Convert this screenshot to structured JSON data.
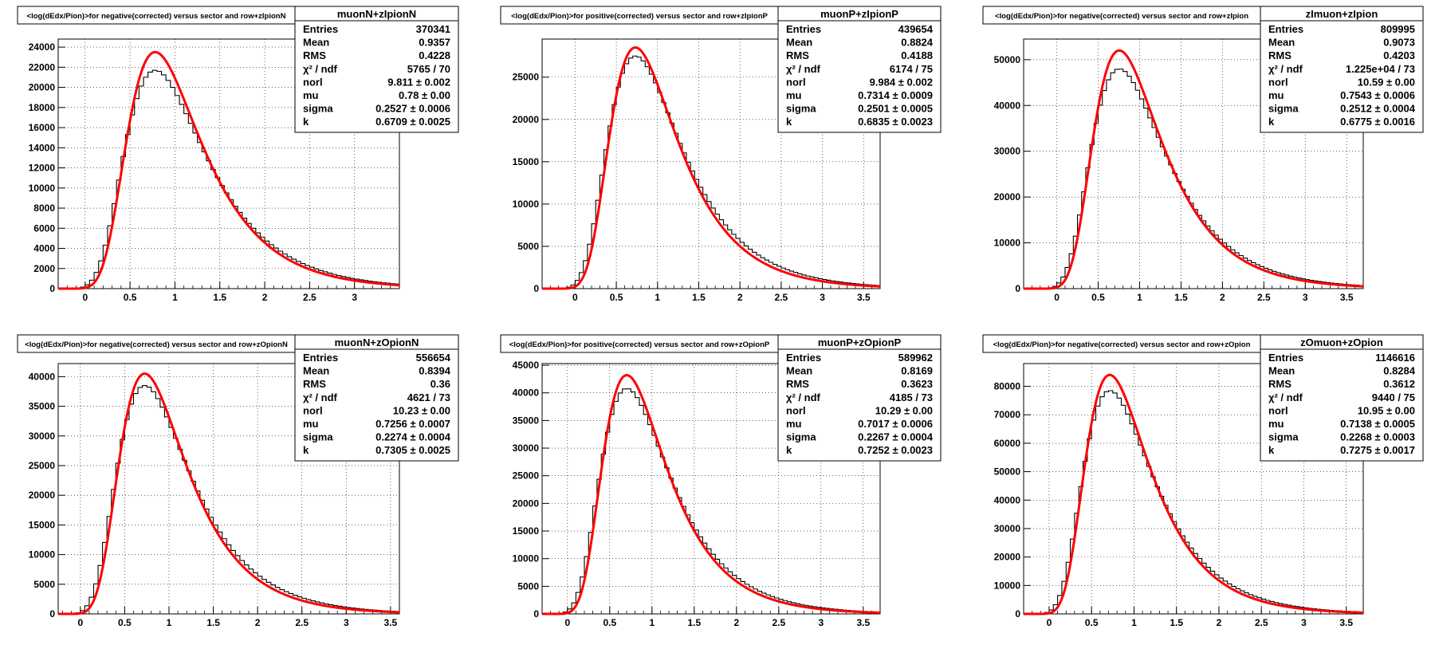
{
  "chart_data": [
    {
      "type": "histogram",
      "title": "<log(dEdx/Pion)>for negative(corrected) versus sector and row+zIpionN",
      "stats_name": "muonN+zIpionN",
      "stats": [
        {
          "label": "Entries",
          "value": "370341"
        },
        {
          "label": "Mean",
          "value": "0.9357"
        },
        {
          "label": "RMS",
          "value": "0.4228"
        },
        {
          "label": "χ² / ndf",
          "value": "5765 / 70"
        },
        {
          "label": "norl",
          "value": "9.811 ± 0.002"
        },
        {
          "label": "mu",
          "value": "0.78 ± 0.00"
        },
        {
          "label": "sigma",
          "value": "0.2527 ± 0.0006"
        },
        {
          "label": "k",
          "value": "0.6709 ± 0.0025"
        }
      ],
      "xlim": [
        -0.3,
        3.5
      ],
      "ylim": [
        0,
        24800
      ],
      "x_ticks": [
        "0",
        "0.5",
        "1",
        "1.5",
        "2",
        "2.5",
        "3"
      ],
      "y_ticks": [
        "0",
        "2000",
        "4000",
        "6000",
        "8000",
        "10000",
        "12000",
        "14000",
        "16000",
        "18000",
        "20000",
        "22000",
        "24000"
      ],
      "grid": true,
      "fit": {
        "mu": 0.78,
        "sigma": 0.2527,
        "k": 0.6709,
        "peak": 23500,
        "color": "#ff0000"
      },
      "hist": {
        "peak": 21700,
        "mode": 0.78,
        "color": "#000000"
      }
    },
    {
      "type": "histogram",
      "title": "<log(dEdx/Pion)>for positive(corrected) versus sector and row+zIpionP",
      "stats_name": "muonP+zIpionP",
      "stats": [
        {
          "label": "Entries",
          "value": "439654"
        },
        {
          "label": "Mean",
          "value": "0.8824"
        },
        {
          "label": "RMS",
          "value": "0.4188"
        },
        {
          "label": "χ² / ndf",
          "value": "6174 / 75"
        },
        {
          "label": "norl",
          "value": "9.984 ± 0.002"
        },
        {
          "label": "mu",
          "value": "0.7314 ± 0.0009"
        },
        {
          "label": "sigma",
          "value": "0.2501 ± 0.0005"
        },
        {
          "label": "k",
          "value": "0.6835 ± 0.0023"
        }
      ],
      "xlim": [
        -0.4,
        3.7
      ],
      "ylim": [
        0,
        29500
      ],
      "x_ticks": [
        "0",
        "0.5",
        "1",
        "1.5",
        "2",
        "2.5",
        "3",
        "3.5"
      ],
      "y_ticks": [
        "0",
        "5000",
        "10000",
        "15000",
        "20000",
        "25000"
      ],
      "grid": true,
      "fit": {
        "mu": 0.7314,
        "sigma": 0.2501,
        "k": 0.6835,
        "peak": 28500,
        "color": "#ff0000"
      },
      "hist": {
        "peak": 27500,
        "mode": 0.7314,
        "color": "#000000"
      }
    },
    {
      "type": "histogram",
      "title": "<log(dEdx/Pion)>for negative(corrected) versus sector and row+zIpion",
      "stats_name": "zImuon+zIpion",
      "stats": [
        {
          "label": "Entries",
          "value": "809995"
        },
        {
          "label": "Mean",
          "value": "0.9073"
        },
        {
          "label": "RMS",
          "value": "0.4203"
        },
        {
          "label": "χ² / ndf",
          "value": "1.225e+04 / 73"
        },
        {
          "label": "norl",
          "value": "10.59 ± 0.00"
        },
        {
          "label": "mu",
          "value": "0.7543 ± 0.0006"
        },
        {
          "label": "sigma",
          "value": "0.2512 ± 0.0004"
        },
        {
          "label": "k",
          "value": "0.6775 ± 0.0016"
        }
      ],
      "xlim": [
        -0.4,
        3.7
      ],
      "ylim": [
        0,
        54500
      ],
      "x_ticks": [
        "0",
        "0.5",
        "1",
        "1.5",
        "2",
        "2.5",
        "3",
        "3.5"
      ],
      "y_ticks": [
        "0",
        "10000",
        "20000",
        "30000",
        "40000",
        "50000"
      ],
      "grid": true,
      "fit": {
        "mu": 0.7543,
        "sigma": 0.2512,
        "k": 0.6775,
        "peak": 52000,
        "color": "#ff0000"
      },
      "hist": {
        "peak": 48000,
        "mode": 0.7543,
        "color": "#000000"
      }
    },
    {
      "type": "histogram",
      "title": "<log(dEdx/Pion)>for negative(corrected) versus sector and row+zOpionN",
      "stats_name": "muonN+zOpionN",
      "stats": [
        {
          "label": "Entries",
          "value": "556654"
        },
        {
          "label": "Mean",
          "value": "0.8394"
        },
        {
          "label": "RMS",
          "value": "0.36"
        },
        {
          "label": "χ² / ndf",
          "value": "4621 / 73"
        },
        {
          "label": "norl",
          "value": "10.23 ± 0.00"
        },
        {
          "label": "mu",
          "value": "0.7256 ± 0.0007"
        },
        {
          "label": "sigma",
          "value": "0.2274 ± 0.0004"
        },
        {
          "label": "k",
          "value": "0.7305 ± 0.0025"
        }
      ],
      "xlim": [
        -0.25,
        3.6
      ],
      "ylim": [
        0,
        42200
      ],
      "x_ticks": [
        "0",
        "0.5",
        "1",
        "1.5",
        "2",
        "2.5",
        "3",
        "3.5"
      ],
      "y_ticks": [
        "0",
        "5000",
        "10000",
        "15000",
        "20000",
        "25000",
        "30000",
        "35000",
        "40000"
      ],
      "grid": true,
      "fit": {
        "mu": 0.7256,
        "sigma": 0.2274,
        "k": 0.7305,
        "peak": 40500,
        "color": "#ff0000"
      },
      "hist": {
        "peak": 38500,
        "mode": 0.7256,
        "color": "#000000"
      }
    },
    {
      "type": "histogram",
      "title": "<log(dEdx/Pion)>for positive(corrected) versus sector and row+zOpionP",
      "stats_name": "muonP+zOpionP",
      "stats": [
        {
          "label": "Entries",
          "value": "589962"
        },
        {
          "label": "Mean",
          "value": "0.8169"
        },
        {
          "label": "RMS",
          "value": "0.3623"
        },
        {
          "label": "χ² / ndf",
          "value": "4185 / 73"
        },
        {
          "label": "norl",
          "value": "10.29 ± 0.00"
        },
        {
          "label": "mu",
          "value": "0.7017 ± 0.0006"
        },
        {
          "label": "sigma",
          "value": "0.2267 ± 0.0004"
        },
        {
          "label": "k",
          "value": "0.7252 ± 0.0023"
        }
      ],
      "xlim": [
        -0.3,
        3.7
      ],
      "ylim": [
        0,
        45300
      ],
      "x_ticks": [
        "0",
        "0.5",
        "1",
        "1.5",
        "2",
        "2.5",
        "3",
        "3.5"
      ],
      "y_ticks": [
        "0",
        "5000",
        "10000",
        "15000",
        "20000",
        "25000",
        "30000",
        "35000",
        "40000",
        "45000"
      ],
      "grid": true,
      "fit": {
        "mu": 0.7017,
        "sigma": 0.2267,
        "k": 0.7252,
        "peak": 43200,
        "color": "#ff0000"
      },
      "hist": {
        "peak": 40800,
        "mode": 0.7017,
        "color": "#000000"
      }
    },
    {
      "type": "histogram",
      "title": "<log(dEdx/Pion)>for negative(corrected) versus sector and row+zOpion",
      "stats_name": "zOmuon+zOpion",
      "stats": [
        {
          "label": "Entries",
          "value": "1146616"
        },
        {
          "label": "Mean",
          "value": "0.8284"
        },
        {
          "label": "RMS",
          "value": "0.3612"
        },
        {
          "label": "χ² / ndf",
          "value": "9440 / 75"
        },
        {
          "label": "norl",
          "value": "10.95 ± 0.00"
        },
        {
          "label": "mu",
          "value": "0.7138 ± 0.0005"
        },
        {
          "label": "sigma",
          "value": "0.2268 ± 0.0003"
        },
        {
          "label": "k",
          "value": "0.7275 ± 0.0017"
        }
      ],
      "xlim": [
        -0.3,
        3.7
      ],
      "ylim": [
        0,
        88000
      ],
      "x_ticks": [
        "0",
        "0.5",
        "1",
        "1.5",
        "2",
        "2.5",
        "3",
        "3.5"
      ],
      "y_ticks": [
        "0",
        "10000",
        "20000",
        "30000",
        "40000",
        "50000",
        "60000",
        "70000",
        "80000"
      ],
      "grid": true,
      "fit": {
        "mu": 0.7138,
        "sigma": 0.2268,
        "k": 0.7275,
        "peak": 84000,
        "color": "#ff0000"
      },
      "hist": {
        "peak": 78500,
        "mode": 0.7138,
        "color": "#000000"
      }
    }
  ]
}
